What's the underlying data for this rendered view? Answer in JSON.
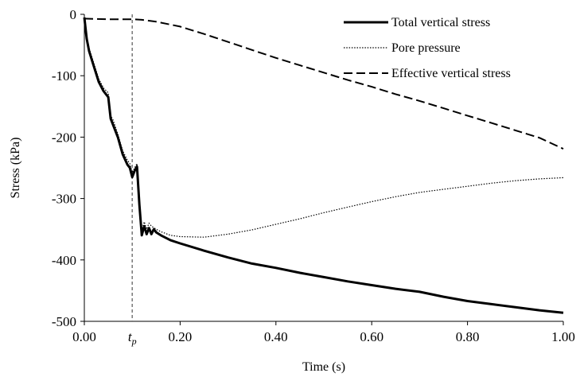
{
  "chart_data": {
    "type": "line",
    "title": "",
    "xlabel": "Time (s)",
    "ylabel": "Stress (kPa)",
    "xlim": [
      0,
      1.0
    ],
    "ylim": [
      -500,
      0
    ],
    "x_ticks": [
      0,
      0.2,
      0.4,
      0.6,
      0.8,
      1.0
    ],
    "x_tick_labels": [
      "0.00",
      "0.20",
      "0.40",
      "0.60",
      "0.80",
      "1.00"
    ],
    "y_ticks": [
      0,
      -100,
      -200,
      -300,
      -400,
      -500
    ],
    "y_tick_labels": [
      "0",
      "-100",
      "-200",
      "-300",
      "-400",
      "-500"
    ],
    "grid": false,
    "legend_position": "top-right",
    "annotation": {
      "label": "t",
      "subscript": "p",
      "x": 0.1
    },
    "series": [
      {
        "name": "Total vertical stress",
        "style": "solid",
        "color": "#000000",
        "x": [
          0.0,
          0.005,
          0.01,
          0.02,
          0.03,
          0.04,
          0.05,
          0.055,
          0.06,
          0.07,
          0.08,
          0.09,
          0.095,
          0.1,
          0.105,
          0.11,
          0.115,
          0.12,
          0.125,
          0.13,
          0.135,
          0.14,
          0.145,
          0.15,
          0.16,
          0.18,
          0.2,
          0.25,
          0.3,
          0.35,
          0.4,
          0.45,
          0.5,
          0.55,
          0.6,
          0.65,
          0.7,
          0.75,
          0.8,
          0.85,
          0.9,
          0.95,
          1.0
        ],
        "y": [
          -5,
          -40,
          -60,
          -85,
          -110,
          -125,
          -135,
          -170,
          -180,
          -200,
          -228,
          -245,
          -250,
          -265,
          -255,
          -248,
          -310,
          -360,
          -345,
          -358,
          -348,
          -358,
          -350,
          -355,
          -360,
          -368,
          -373,
          -385,
          -396,
          -406,
          -413,
          -421,
          -428,
          -435,
          -441,
          -447,
          -452,
          -460,
          -467,
          -472,
          -477,
          -482,
          -486
        ]
      },
      {
        "name": "Pore pressure",
        "style": "dotted",
        "color": "#000000",
        "x": [
          0.0,
          0.005,
          0.01,
          0.02,
          0.03,
          0.04,
          0.05,
          0.055,
          0.06,
          0.07,
          0.08,
          0.09,
          0.095,
          0.1,
          0.105,
          0.11,
          0.115,
          0.12,
          0.125,
          0.13,
          0.135,
          0.14,
          0.15,
          0.16,
          0.18,
          0.2,
          0.25,
          0.3,
          0.35,
          0.4,
          0.45,
          0.5,
          0.55,
          0.6,
          0.65,
          0.7,
          0.75,
          0.8,
          0.85,
          0.9,
          0.95,
          1.0
        ],
        "y": [
          -5,
          -35,
          -55,
          -80,
          -105,
          -120,
          -128,
          -165,
          -172,
          -195,
          -222,
          -238,
          -243,
          -258,
          -250,
          -243,
          -305,
          -352,
          -338,
          -350,
          -340,
          -345,
          -350,
          -354,
          -360,
          -362,
          -363,
          -358,
          -351,
          -342,
          -333,
          -323,
          -314,
          -305,
          -297,
          -290,
          -285,
          -280,
          -275,
          -271,
          -268,
          -266
        ]
      },
      {
        "name": "Effective vertical stress",
        "style": "dashed",
        "color": "#000000",
        "x": [
          0.0,
          0.05,
          0.1,
          0.12,
          0.15,
          0.2,
          0.25,
          0.3,
          0.35,
          0.4,
          0.45,
          0.5,
          0.55,
          0.6,
          0.65,
          0.7,
          0.75,
          0.8,
          0.85,
          0.9,
          0.95,
          1.0
        ],
        "y": [
          -7,
          -8,
          -8,
          -9,
          -12,
          -20,
          -32,
          -45,
          -58,
          -71,
          -83,
          -95,
          -107,
          -118,
          -130,
          -141,
          -153,
          -165,
          -177,
          -189,
          -201,
          -219
        ]
      }
    ]
  }
}
